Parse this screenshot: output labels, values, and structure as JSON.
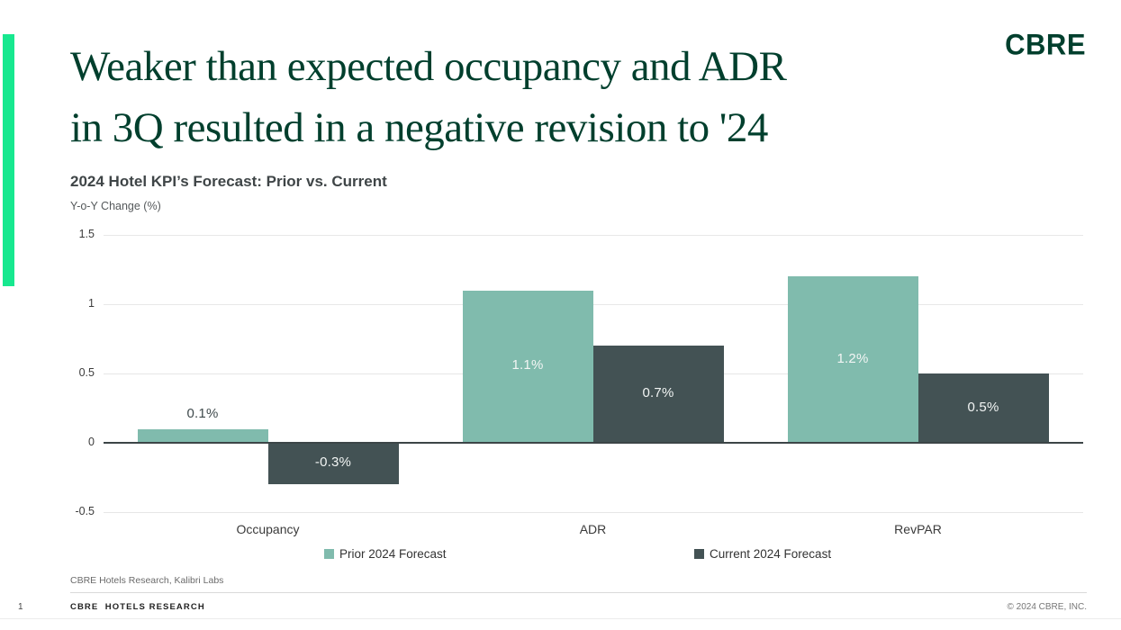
{
  "slide": {
    "title_line1": "Weaker than expected occupancy and ADR",
    "title_line2": "in 3Q resulted in a negative revision to '24",
    "logo": "CBRE",
    "source": "CBRE Hotels Research, Kalibri Labs",
    "page_number": "1",
    "footer_left": "CBRE  HOTELS RESEARCH",
    "copyright": "© 2024 CBRE, INC."
  },
  "colors": {
    "accent_green": "#17E88F",
    "title_green": "#003F2D",
    "prior_bar": "#80BBAD",
    "current_bar": "#435254",
    "axis_line": "#3C4547",
    "gridline": "#E7E7E7"
  },
  "chart_data": {
    "type": "bar",
    "title": "2024 Hotel KPI’s Forecast: Prior vs. Current",
    "ylabel": "Y-o-Y Change (%)",
    "categories": [
      "Occupancy",
      "ADR",
      "RevPAR"
    ],
    "series": [
      {
        "name": "Prior 2024 Forecast",
        "color": "#80BBAD",
        "values": [
          0.1,
          1.1,
          1.2
        ],
        "labels": [
          "0.1%",
          "1.1%",
          "1.2%"
        ]
      },
      {
        "name": "Current 2024 Forecast",
        "color": "#435254",
        "values": [
          -0.3,
          0.7,
          0.5
        ],
        "labels": [
          "-0.3%",
          "0.7%",
          "0.5%"
        ]
      }
    ],
    "yticks": [
      1.5,
      1,
      0.5,
      0,
      -0.5
    ],
    "ylim": [
      -0.5,
      1.5
    ],
    "grid": true,
    "legend_position": "bottom"
  }
}
